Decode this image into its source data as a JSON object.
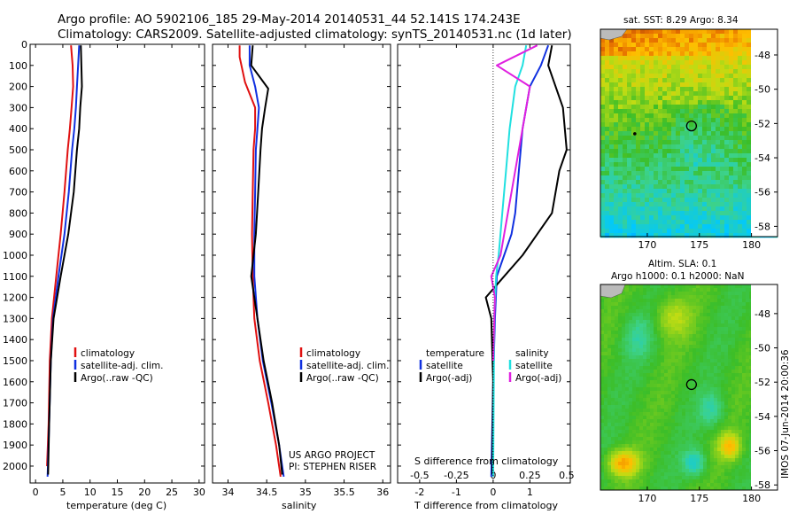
{
  "title": {
    "line1": "Argo profile: AO 5902106_185 29-May-2014 20140531_44 52.141S 174.243E",
    "line2": "Climatology: CARS2009. Satellite-adjusted climatology: synTS_20140531.nc (1d later)"
  },
  "project": {
    "line1": "US ARGO PROJECT",
    "line2": "PI: STEPHEN RISER"
  },
  "side_label": "IMOS 07-Jun-2014 20:00:36",
  "map_sst": {
    "title": "sat. SST: 8.29 Argo: 8.34",
    "float_lon": 174.243,
    "float_lat": -52.141
  },
  "map_sla": {
    "title1": "Altim. SLA: 0.1",
    "title2": "Argo h1000: 0.1 h2000: NaN",
    "float_lon": 174.243,
    "float_lat": -52.141
  },
  "maps_axes": {
    "lon_ticks": [
      "170",
      "175",
      "180"
    ],
    "lat_ticks": [
      "-48",
      "-50",
      "-52",
      "-54",
      "-56",
      "-58"
    ]
  },
  "colors": {
    "climatology": "#e01010",
    "satellite": "#1030e0",
    "argo": "#000000",
    "sat_salinity": "#20e0e0",
    "argo_salinity": "#e020e0"
  },
  "chart_data": [
    {
      "type": "line",
      "xlabel": "temperature (deg C)",
      "ylabel": "",
      "xlim": [
        -1,
        31
      ],
      "ylim": [
        2080,
        0
      ],
      "xticks": [
        0,
        5,
        10,
        15,
        20,
        25,
        30
      ],
      "yticks": [
        0,
        100,
        200,
        300,
        400,
        500,
        600,
        700,
        800,
        900,
        1000,
        1100,
        1200,
        1300,
        1400,
        1500,
        1600,
        1700,
        1800,
        1900,
        2000
      ],
      "legend": [
        "climatology",
        "satellite-adj. clim.",
        "Argo(..raw -QC)"
      ],
      "series": [
        {
          "name": "climatology",
          "x": [
            6.5,
            6.8,
            6.9,
            6.6,
            6.3,
            5.9,
            5.3,
            4.6,
            3.8,
            3.0,
            2.6,
            2.4,
            2.1
          ],
          "y": [
            5,
            100,
            200,
            300,
            400,
            500,
            700,
            900,
            1100,
            1300,
            1500,
            1800,
            2000
          ]
        },
        {
          "name": "satellite-adj. clim.",
          "x": [
            8.0,
            7.8,
            7.6,
            7.4,
            7.1,
            6.7,
            6.1,
            5.3,
            4.2,
            3.2,
            2.8,
            2.5,
            2.2
          ],
          "y": [
            5,
            100,
            200,
            300,
            400,
            500,
            700,
            900,
            1100,
            1300,
            1500,
            1800,
            2050
          ]
        },
        {
          "name": "Argo(..raw -QC)",
          "x": [
            8.3,
            8.4,
            8.5,
            8.2,
            8.0,
            7.6,
            7.0,
            6.0,
            4.6,
            3.3,
            2.8,
            2.5,
            2.3
          ],
          "y": [
            5,
            100,
            200,
            300,
            400,
            500,
            700,
            900,
            1100,
            1300,
            1500,
            1800,
            2040
          ]
        }
      ]
    },
    {
      "type": "line",
      "xlabel": "salinity",
      "ylabel": "",
      "xlim": [
        33.8,
        36.1
      ],
      "ylim": [
        2080,
        0
      ],
      "xticks": [
        34,
        34.5,
        35,
        35.5,
        36
      ],
      "legend": [
        "climatology",
        "satellite-adj. clim.",
        "Argo(..raw -QC)"
      ],
      "series": [
        {
          "name": "climatology",
          "x": [
            34.15,
            34.15,
            34.22,
            34.35,
            34.35,
            34.33,
            34.32,
            34.31,
            34.32,
            34.34,
            34.41,
            34.52,
            34.62,
            34.68
          ],
          "y": [
            5,
            60,
            180,
            300,
            400,
            500,
            700,
            900,
            1100,
            1300,
            1500,
            1700,
            1900,
            2050
          ]
        },
        {
          "name": "satellite-adj. clim.",
          "x": [
            34.28,
            34.28,
            34.35,
            34.4,
            34.38,
            34.36,
            34.35,
            34.34,
            34.34,
            34.38,
            34.45,
            34.56,
            34.66,
            34.72
          ],
          "y": [
            5,
            100,
            200,
            300,
            400,
            500,
            700,
            900,
            1100,
            1300,
            1500,
            1700,
            1900,
            2050
          ]
        },
        {
          "name": "Argo(..raw -QC)",
          "x": [
            34.32,
            34.3,
            34.52,
            34.48,
            34.44,
            34.42,
            34.39,
            34.36,
            34.3,
            34.38,
            34.46,
            34.57,
            34.66,
            34.7
          ],
          "y": [
            5,
            100,
            210,
            300,
            400,
            500,
            700,
            900,
            1100,
            1300,
            1500,
            1700,
            1900,
            2040
          ]
        }
      ]
    },
    {
      "type": "line",
      "xlabel": "T difference from climatology",
      "xlabel2": "S difference from climatology",
      "ylabel": "",
      "xlim": [
        -2.6,
        2.1
      ],
      "ylim": [
        2080,
        0
      ],
      "xticks": [
        "-2",
        "-1",
        "0",
        "1"
      ],
      "xtick_values": [
        -2,
        -1,
        0,
        1
      ],
      "xticks2": [
        "-0.5",
        "-0.25",
        "0",
        "0.25",
        "0.5"
      ],
      "legend_title_t": "temperature",
      "legend_title_s": "salinity",
      "legend": [
        "satellite",
        "Argo(-adj)",
        "satellite",
        "Argo(-adj)"
      ],
      "series": [
        {
          "name": "temperature satellite",
          "x": [
            1.5,
            1.3,
            1.0,
            0.8,
            0.7,
            0.6,
            0.5,
            0.3,
            0.1,
            0.05,
            0.0,
            -0.05
          ],
          "y": [
            5,
            100,
            200,
            400,
            600,
            800,
            900,
            1000,
            1100,
            1300,
            1600,
            2050
          ]
        },
        {
          "name": "temperature Argo(-adj)",
          "x": [
            1.6,
            1.5,
            1.9,
            2.0,
            1.8,
            1.6,
            1.2,
            0.8,
            0.3,
            -0.2,
            -0.05,
            0.0,
            -0.02
          ],
          "y": [
            5,
            100,
            300,
            500,
            600,
            800,
            900,
            1000,
            1100,
            1200,
            1300,
            1600,
            2040
          ]
        },
        {
          "name": "salinity satellite",
          "x": [
            0.9,
            0.8,
            0.6,
            0.45,
            0.35,
            0.25,
            0.15,
            0.08,
            0.03,
            0.0
          ],
          "y": [
            5,
            100,
            200,
            400,
            600,
            800,
            1000,
            1100,
            1300,
            2050
          ]
        },
        {
          "name": "salinity Argo(-adj)",
          "x": [
            1.2,
            0.1,
            1.0,
            0.8,
            0.6,
            0.4,
            0.2,
            -0.05,
            0.05,
            0.0
          ],
          "y": [
            5,
            100,
            200,
            400,
            600,
            800,
            1000,
            1100,
            1200,
            1500
          ]
        }
      ]
    }
  ]
}
